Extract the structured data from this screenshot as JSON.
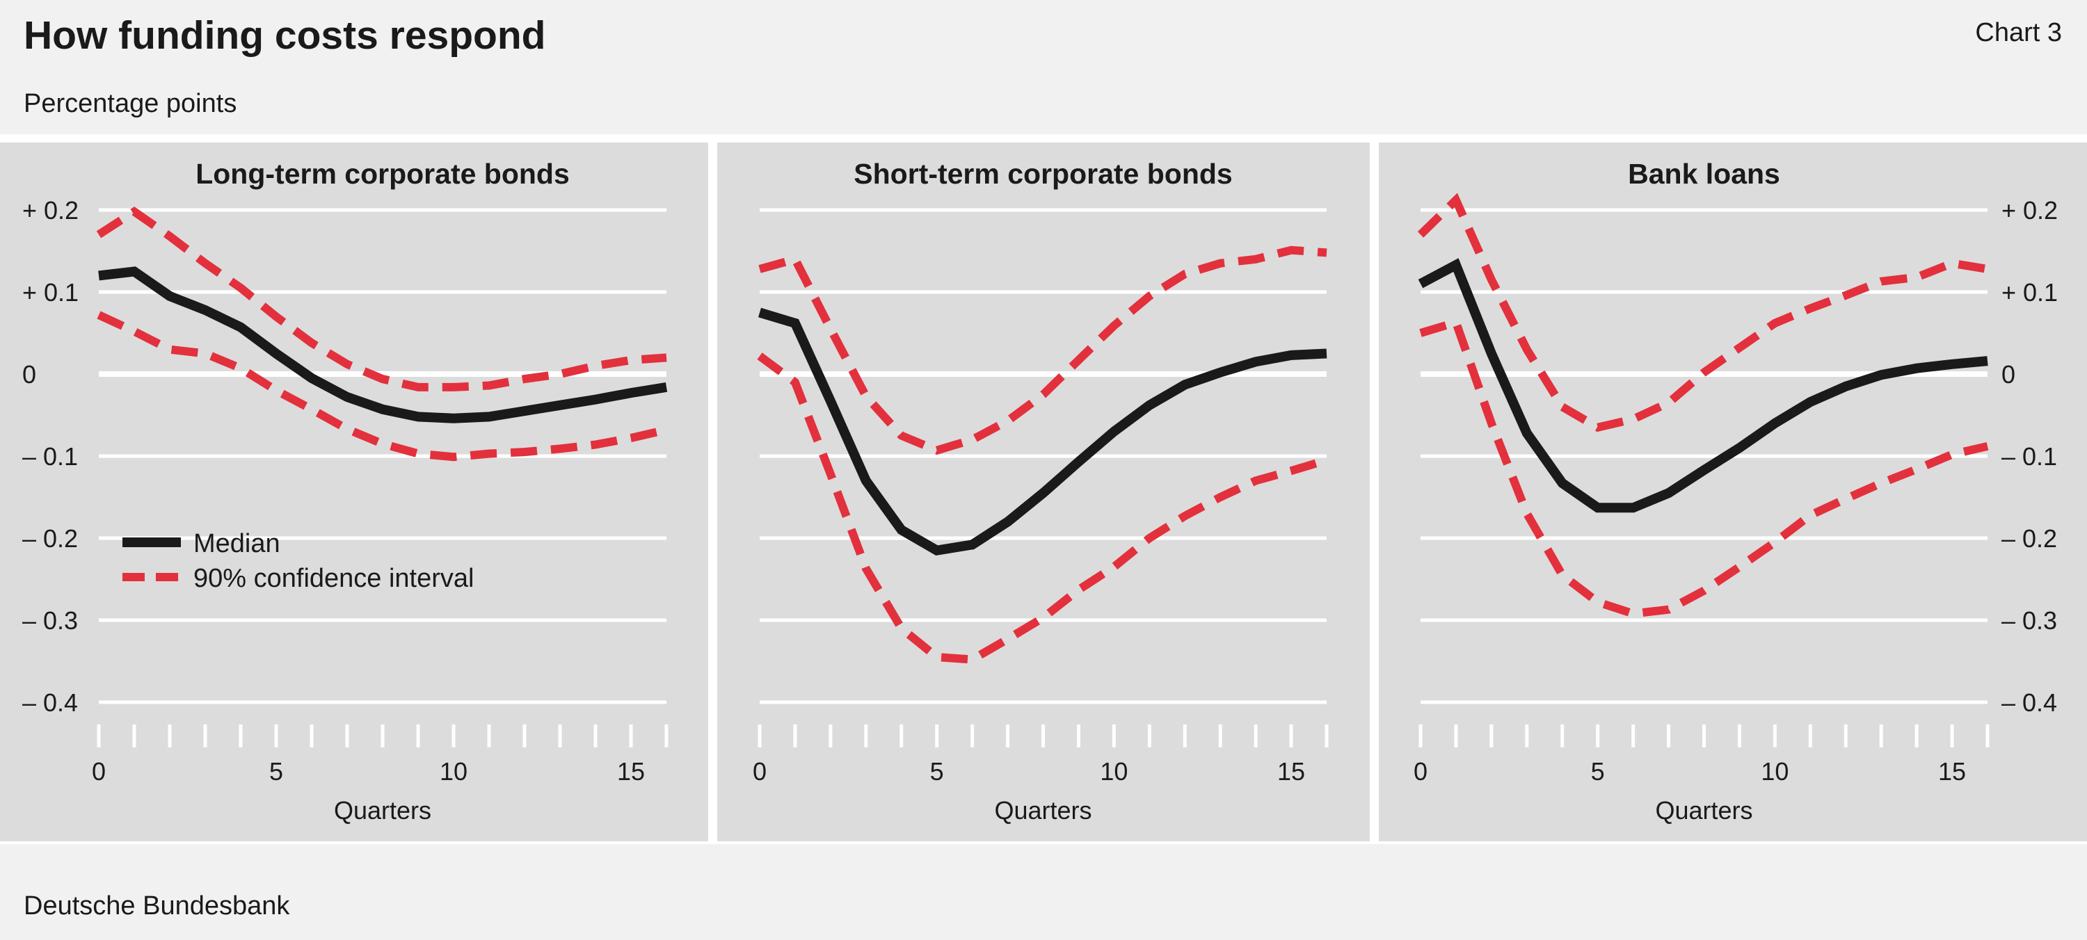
{
  "header": {
    "title": "How funding costs respond",
    "chart_number": "Chart 3",
    "subtitle": "Percentage points"
  },
  "footer": {
    "source": "Deutsche Bundesbank"
  },
  "colors": {
    "median": "#1a1a1a",
    "confidence": "#e3303d",
    "panel_bg": "#dcdcdc",
    "page_bg": "#f1f1f1",
    "grid": "#ffffff"
  },
  "chart_data": [
    {
      "type": "line",
      "title": "Long-term corporate bonds",
      "xlabel": "Quarters",
      "ylabel": "",
      "xlim": [
        0,
        16
      ],
      "ylim": [
        -0.4,
        0.2
      ],
      "xticks": [
        0,
        5,
        10,
        15
      ],
      "yticks": [
        0.2,
        0.1,
        0,
        -0.1,
        -0.2,
        -0.3,
        -0.4
      ],
      "ytick_labels": [
        "+ 0.2",
        "+ 0.1",
        "0",
        "– 0.1",
        "– 0.2",
        "– 0.3",
        "– 0.4"
      ],
      "y_axis_side": "left",
      "legend": {
        "position": "lower-left",
        "entries": [
          "Median",
          "90% confidence interval"
        ]
      },
      "x": [
        0,
        1,
        2,
        3,
        4,
        5,
        6,
        7,
        8,
        9,
        10,
        11,
        12,
        13,
        14,
        15,
        16
      ],
      "series": [
        {
          "name": "Median",
          "style": "solid",
          "values": [
            0.12,
            0.125,
            0.095,
            0.078,
            0.057,
            0.025,
            -0.005,
            -0.028,
            -0.043,
            -0.052,
            -0.054,
            -0.052,
            -0.045,
            -0.038,
            -0.031,
            -0.023,
            -0.016
          ]
        },
        {
          "name": "90% confidence interval",
          "style": "dashed",
          "values": [
            0.17,
            0.198,
            0.168,
            0.135,
            0.105,
            0.07,
            0.038,
            0.012,
            -0.006,
            -0.016,
            -0.016,
            -0.014,
            -0.006,
            0.0,
            0.01,
            0.017,
            0.02
          ]
        },
        {
          "name": "90% confidence interval",
          "style": "dashed",
          "values": [
            0.072,
            0.052,
            0.03,
            0.025,
            0.007,
            -0.02,
            -0.043,
            -0.067,
            -0.085,
            -0.097,
            -0.101,
            -0.097,
            -0.095,
            -0.091,
            -0.086,
            -0.078,
            -0.068
          ]
        }
      ]
    },
    {
      "type": "line",
      "title": "Short-term corporate bonds",
      "xlabel": "Quarters",
      "ylabel": "",
      "xlim": [
        0,
        16
      ],
      "ylim": [
        -0.4,
        0.2
      ],
      "xticks": [
        0,
        5,
        10,
        15
      ],
      "y_axis_side": "none",
      "x": [
        0,
        1,
        2,
        3,
        4,
        5,
        6,
        7,
        8,
        9,
        10,
        11,
        12,
        13,
        14,
        15,
        16
      ],
      "series": [
        {
          "name": "Median",
          "style": "solid",
          "values": [
            0.075,
            0.062,
            -0.033,
            -0.13,
            -0.19,
            -0.215,
            -0.208,
            -0.18,
            -0.145,
            -0.107,
            -0.07,
            -0.038,
            -0.013,
            0.002,
            0.015,
            0.023,
            0.025
          ]
        },
        {
          "name": "90% confidence interval",
          "style": "dashed",
          "values": [
            0.128,
            0.14,
            0.055,
            -0.027,
            -0.075,
            -0.093,
            -0.08,
            -0.057,
            -0.025,
            0.017,
            0.059,
            0.095,
            0.122,
            0.135,
            0.14,
            0.151,
            0.148
          ]
        },
        {
          "name": "90% confidence interval",
          "style": "dashed",
          "values": [
            0.022,
            -0.01,
            -0.122,
            -0.237,
            -0.31,
            -0.345,
            -0.348,
            -0.323,
            -0.297,
            -0.263,
            -0.235,
            -0.2,
            -0.173,
            -0.15,
            -0.13,
            -0.118,
            -0.105
          ]
        }
      ]
    },
    {
      "type": "line",
      "title": "Bank loans",
      "xlabel": "Quarters",
      "ylabel": "",
      "xlim": [
        0,
        16
      ],
      "ylim": [
        -0.4,
        0.2
      ],
      "xticks": [
        0,
        5,
        10,
        15
      ],
      "yticks": [
        0.2,
        0.1,
        0,
        -0.1,
        -0.2,
        -0.3,
        -0.4
      ],
      "ytick_labels": [
        "+ 0.2",
        "+ 0.1",
        "0",
        "– 0.1",
        "– 0.2",
        "– 0.3",
        "– 0.4"
      ],
      "y_axis_side": "right",
      "x": [
        0,
        1,
        2,
        3,
        4,
        5,
        6,
        7,
        8,
        9,
        10,
        11,
        12,
        13,
        14,
        15,
        16
      ],
      "series": [
        {
          "name": "Median",
          "style": "solid",
          "values": [
            0.11,
            0.133,
            0.025,
            -0.072,
            -0.133,
            -0.163,
            -0.163,
            -0.145,
            -0.117,
            -0.09,
            -0.06,
            -0.034,
            -0.015,
            -0.001,
            0.007,
            0.012,
            0.016
          ]
        },
        {
          "name": "90% confidence interval",
          "style": "dashed",
          "values": [
            0.17,
            0.212,
            0.115,
            0.03,
            -0.04,
            -0.065,
            -0.055,
            -0.035,
            0.002,
            0.032,
            0.062,
            0.08,
            0.096,
            0.113,
            0.118,
            0.135,
            0.128
          ]
        },
        {
          "name": "90% confidence interval",
          "style": "dashed",
          "values": [
            0.05,
            0.063,
            -0.06,
            -0.17,
            -0.245,
            -0.278,
            -0.292,
            -0.287,
            -0.264,
            -0.235,
            -0.205,
            -0.172,
            -0.152,
            -0.133,
            -0.116,
            -0.098,
            -0.088
          ]
        }
      ]
    }
  ]
}
